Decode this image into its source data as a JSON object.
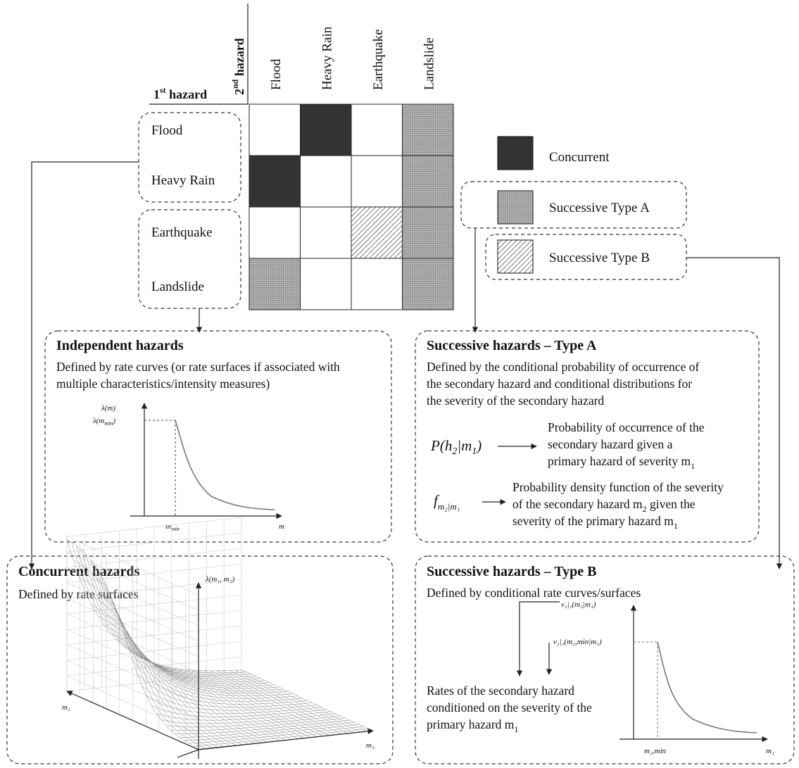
{
  "matrix": {
    "row_header": "1",
    "row_header_sup": "st",
    "row_header_rest": " hazard",
    "col_header": "2",
    "col_header_sup": "nd",
    "col_header_rest": " hazard",
    "columns": [
      "Flood",
      "Heavy Rain",
      "Earthquake",
      "Landslide"
    ],
    "rows": [
      "Flood",
      "Heavy Rain",
      "Earthquake",
      "Landslide"
    ],
    "cells": [
      [
        "none",
        "concurrent",
        "none",
        "typeA"
      ],
      [
        "concurrent",
        "none",
        "none",
        "typeA"
      ],
      [
        "none",
        "none",
        "typeB",
        "typeA"
      ],
      [
        "typeA",
        "none",
        "none",
        "typeA"
      ]
    ]
  },
  "legend": {
    "concurrent": "Concurrent",
    "typeA": "Successive Type A",
    "typeB": "Successive Type B"
  },
  "independent": {
    "title": "Independent hazards",
    "line1": "Defined by rate curves (or rate surfaces if associated with",
    "line2": "multiple characteristics/intensity measures)",
    "ylabel": "λ(m)",
    "ytick": "λ(m",
    "ytick_sub": "min",
    "ytick_end": ")",
    "xtick": "m",
    "xtick_sub": "min",
    "xlabel": "m"
  },
  "typeA": {
    "title": "Successive hazards – Type A",
    "lines": [
      "Defined by the conditional probability of occurrence of",
      "the secondary hazard and conditional distributions for",
      "the severity of the secondary hazard"
    ],
    "eq1": "P(h",
    "eq1_sub1": "2",
    "eq1_mid": "|m",
    "eq1_sub2": "1",
    "eq1_end": ")",
    "eq1_desc": [
      "Probability of occurrence of the",
      "secondary hazard given a",
      "primary hazard of severity m"
    ],
    "eq1_desc_sub": "1",
    "eq2": "f",
    "eq2_sub": "m₂|m₁",
    "eq2_desc": [
      "Probability density function of the severity",
      "of the secondary hazard m",
      "severity of the primary hazard m"
    ],
    "eq2_desc_mid_sub": "2",
    "eq2_desc_mid_end": " given the",
    "eq2_desc_end_sub": "1"
  },
  "concurrent": {
    "title": "Concurrent hazards",
    "line1": "Defined by rate surfaces",
    "zlabel": "λ(m₁, m₂)",
    "xlabel": "m₁",
    "ylabel": "m₂"
  },
  "typeB": {
    "title": "Successive hazards – Type B",
    "line1": "Defined by conditional rate curves/surfaces",
    "ylabel": "ν₂|₁(m₂|m₁)",
    "ytick": "ν₂|₁(m₂,min|m₁)",
    "desc": [
      "Rates of the secondary hazard",
      "conditioned on the severity of the",
      "primary hazard m"
    ],
    "desc_sub": "1",
    "xtick": "m₂,min",
    "xlabel": "m₂"
  },
  "colors": {
    "concurrent": "#333333",
    "typeA": "#999999",
    "typeB_line": "#555555",
    "curve": "#777777",
    "dashed_guide": "#4a7fc0"
  }
}
